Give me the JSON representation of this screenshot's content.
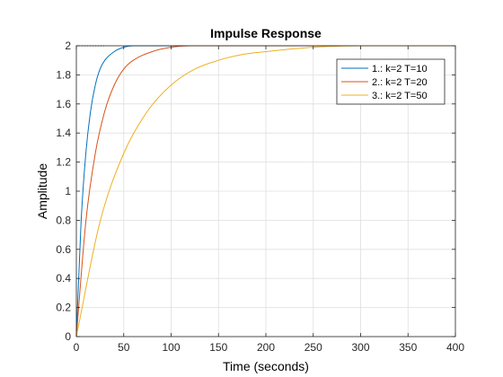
{
  "chart_data": {
    "type": "line",
    "title": "Impulse Response",
    "xlabel": "Time (seconds)",
    "ylabel": "Amplitude",
    "xlim": [
      0,
      400
    ],
    "ylim": [
      0,
      2
    ],
    "grid": true,
    "legend_position": "top-right",
    "x_ticks": [
      0,
      50,
      100,
      150,
      200,
      250,
      300,
      350,
      400
    ],
    "x_tick_labels": [
      "0",
      "50",
      "100",
      "150",
      "200",
      "250",
      "300",
      "350",
      "400"
    ],
    "y_ticks": [
      0,
      0.2,
      0.4,
      0.6,
      0.8,
      1,
      1.2,
      1.4,
      1.6,
      1.8,
      2
    ],
    "y_tick_labels": [
      "0",
      "0.2",
      "0.4",
      "0.6",
      "0.8",
      "1",
      "1.2",
      "1.4",
      "1.6",
      "1.8",
      "2"
    ],
    "series": [
      {
        "name": "1.: k=2 T=10",
        "color": "#0072BD",
        "x": [
          0,
          5,
          10,
          15,
          20,
          25,
          30,
          40,
          50,
          60,
          70,
          80,
          100,
          400
        ],
        "y": [
          0,
          0.79,
          1.26,
          1.55,
          1.73,
          1.84,
          1.9,
          1.96,
          1.99,
          2.0,
          2.0,
          2.0,
          2.0,
          2.0
        ]
      },
      {
        "name": "2.: k=2 T=20",
        "color": "#D95319",
        "x": [
          0,
          10,
          20,
          30,
          40,
          50,
          60,
          80,
          100,
          120,
          150,
          200,
          400
        ],
        "y": [
          0,
          0.79,
          1.26,
          1.55,
          1.73,
          1.84,
          1.9,
          1.96,
          1.99,
          2.0,
          2.0,
          2.0,
          2.0
        ]
      },
      {
        "name": "3.: k=2 T=50",
        "color": "#EDB120",
        "x": [
          0,
          25,
          50,
          75,
          100,
          125,
          150,
          175,
          200,
          250,
          300,
          350,
          400
        ],
        "y": [
          0,
          0.79,
          1.26,
          1.55,
          1.73,
          1.84,
          1.9,
          1.94,
          1.96,
          1.99,
          2.0,
          2.0,
          2.0
        ]
      }
    ],
    "reference_line": {
      "y": 2,
      "x_range": [
        0,
        30
      ],
      "color": "#000000",
      "style": "dotted"
    }
  }
}
